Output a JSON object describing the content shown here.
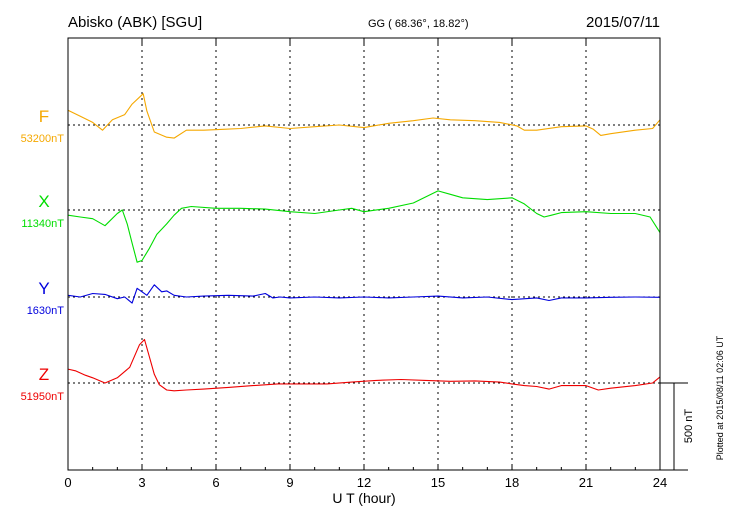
{
  "header": {
    "station": "Abisko (ABK)  [SGU]",
    "coords": "GG ( 68.36°,  18.82°)",
    "date": "2015/07/11"
  },
  "footer": {
    "plotted": "Plotted at 2015/08/11 02:06 UT"
  },
  "chart_data": {
    "type": "line",
    "xlabel": "U T (hour)",
    "xlim": [
      0,
      24
    ],
    "xticks": [
      0,
      3,
      6,
      9,
      12,
      15,
      18,
      21,
      24
    ],
    "scale_bar": "500 nT",
    "grid": true,
    "series": [
      {
        "name": "F",
        "baseline_label": "53200nT",
        "baseline": 53200,
        "color": "#f5a800",
        "x": [
          0,
          0.5,
          1.0,
          1.4,
          1.8,
          2.3,
          2.6,
          2.9,
          3.05,
          3.2,
          3.5,
          4.0,
          4.3,
          4.8,
          5.5,
          6.3,
          7.0,
          8.0,
          9.0,
          10.0,
          11.0,
          12.0,
          13.0,
          14.0,
          14.8,
          15.5,
          16.5,
          17.5,
          18.2,
          18.5,
          19.0,
          20.0,
          21.0,
          21.3,
          21.6,
          22.0,
          23.0,
          23.7,
          24.0
        ],
        "y": [
          53285,
          53250,
          53215,
          53170,
          53230,
          53260,
          53320,
          53360,
          53380,
          53280,
          53160,
          53130,
          53125,
          53170,
          53170,
          53175,
          53180,
          53195,
          53180,
          53190,
          53200,
          53185,
          53210,
          53225,
          53240,
          53230,
          53225,
          53215,
          53195,
          53170,
          53170,
          53190,
          53195,
          53175,
          53140,
          53150,
          53170,
          53180,
          53230
        ]
      },
      {
        "name": "X",
        "baseline_label": "11340nT",
        "baseline": 11340,
        "color": "#00dd00",
        "x": [
          0,
          0.5,
          1.0,
          1.5,
          2.0,
          2.2,
          2.4,
          2.6,
          2.8,
          3.0,
          3.3,
          3.6,
          4.0,
          4.3,
          4.6,
          5.0,
          6.0,
          7.0,
          8.0,
          9.0,
          10.0,
          11.0,
          11.5,
          12.0,
          13.0,
          14.0,
          15.0,
          15.5,
          16.0,
          17.0,
          18.0,
          18.5,
          19.0,
          19.3,
          19.6,
          20.0,
          21.0,
          22.0,
          23.0,
          23.6,
          24.0
        ],
        "y": [
          11310,
          11300,
          11290,
          11250,
          11320,
          11340,
          11260,
          11150,
          11040,
          11050,
          11120,
          11200,
          11260,
          11310,
          11350,
          11360,
          11350,
          11350,
          11345,
          11330,
          11320,
          11340,
          11350,
          11330,
          11350,
          11380,
          11450,
          11430,
          11410,
          11400,
          11410,
          11375,
          11320,
          11300,
          11310,
          11325,
          11330,
          11320,
          11320,
          11300,
          11210
        ]
      },
      {
        "name": "Y",
        "baseline_label": "1630nT",
        "baseline": 1630,
        "color": "#0000dd",
        "x": [
          0,
          0.5,
          1.0,
          1.5,
          2.0,
          2.3,
          2.6,
          2.8,
          3.0,
          3.2,
          3.5,
          3.8,
          4.0,
          4.3,
          4.8,
          5.5,
          6.5,
          7.5,
          8.0,
          8.3,
          8.6,
          9.0,
          10.0,
          11.0,
          12.0,
          13.0,
          14.0,
          15.0,
          16.0,
          17.0,
          18.0,
          19.0,
          19.5,
          20.0,
          21.0,
          22.0,
          23.0,
          24.0
        ],
        "y": [
          1640,
          1630,
          1650,
          1645,
          1620,
          1630,
          1595,
          1680,
          1660,
          1640,
          1700,
          1660,
          1665,
          1640,
          1630,
          1635,
          1640,
          1635,
          1650,
          1625,
          1630,
          1625,
          1630,
          1625,
          1630,
          1625,
          1630,
          1635,
          1625,
          1630,
          1615,
          1625,
          1610,
          1625,
          1625,
          1628,
          1630,
          1628
        ]
      },
      {
        "name": "Z",
        "baseline_label": "51950nT",
        "baseline": 51950,
        "color": "#ee0000",
        "x": [
          0,
          0.3,
          0.7,
          1.0,
          1.5,
          2.0,
          2.5,
          2.9,
          3.1,
          3.3,
          3.5,
          3.7,
          4.0,
          4.3,
          4.8,
          5.5,
          6.5,
          7.5,
          8.5,
          9.5,
          10.5,
          11.5,
          12.5,
          13.5,
          14.5,
          15.5,
          16.5,
          17.5,
          18.0,
          18.5,
          19.0,
          19.5,
          20.0,
          21.0,
          21.5,
          22.0,
          23.0,
          23.7,
          24.0
        ],
        "y": [
          52030,
          52020,
          51995,
          51980,
          51950,
          51980,
          52040,
          52170,
          52200,
          52100,
          52000,
          51940,
          51910,
          51905,
          51910,
          51915,
          51925,
          51935,
          51945,
          51945,
          51945,
          51955,
          51965,
          51970,
          51965,
          51960,
          51962,
          51955,
          51945,
          51935,
          51930,
          51915,
          51935,
          51935,
          51910,
          51920,
          51935,
          51950,
          51985
        ]
      }
    ]
  }
}
